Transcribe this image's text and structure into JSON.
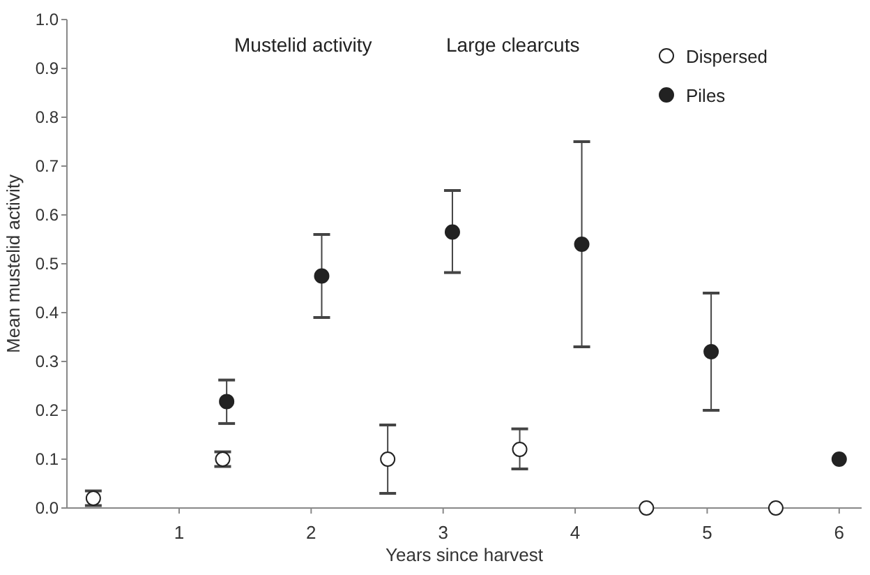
{
  "chart_data": {
    "type": "scatter",
    "xlabel": "Years since harvest",
    "ylabel": "Mean  mustelid activity",
    "annotations": [
      "Mustelid activity",
      "Large clearcuts"
    ],
    "xlim": [
      0.15,
      6.17
    ],
    "xticks": [
      1,
      2,
      3,
      4,
      5,
      6
    ],
    "ylim": [
      0,
      1
    ],
    "yticks": [
      {
        "value": 0,
        "label": "0.0"
      },
      {
        "value": 0.1,
        "label": "0.1"
      },
      {
        "value": 0.2,
        "label": "0.2"
      },
      {
        "value": 0.3,
        "label": "0.3"
      },
      {
        "value": 0.4,
        "label": "0.4"
      },
      {
        "value": 0.5,
        "label": "0.5"
      },
      {
        "value": 0.6,
        "label": "0.6"
      },
      {
        "value": 0.7,
        "label": "0.7"
      },
      {
        "value": 0.8,
        "label": "0.8"
      },
      {
        "value": 0.9,
        "label": "0.9"
      },
      {
        "value": 1,
        "label": "1.0"
      }
    ],
    "grid": false,
    "legend": "top right",
    "marker": "circle",
    "series": [
      {
        "name": "Dispersed",
        "color": "#ffffff",
        "x": [
          0.35,
          1.33,
          2.58,
          3.58,
          4.54,
          5.52
        ],
        "values": [
          0.02,
          0.1,
          0.1,
          0.12,
          0,
          0
        ],
        "errors": [
          [
            0.005,
            0.035
          ],
          [
            0.085,
            0.115
          ],
          [
            0.03,
            0.17
          ],
          [
            0.08,
            0.162
          ],
          null,
          null
        ]
      },
      {
        "name": "Piles",
        "color": "#222222",
        "x": [
          1.36,
          2.08,
          3.07,
          4.05,
          5.03,
          6.0
        ],
        "values": [
          0.218,
          0.475,
          0.565,
          0.54,
          0.32,
          0.1
        ],
        "errors": [
          [
            0.173,
            0.262
          ],
          [
            0.39,
            0.56
          ],
          [
            0.482,
            0.65
          ],
          [
            0.33,
            0.75
          ],
          [
            0.2,
            0.44
          ],
          null
        ]
      }
    ]
  }
}
